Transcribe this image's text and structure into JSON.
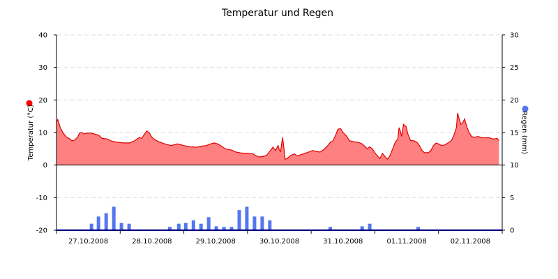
{
  "chart_data": {
    "type": "line",
    "title": "Temperatur und Regen",
    "grid": true,
    "colors": {
      "temperature_line": "#e00000",
      "temperature_fill": "#ff8080",
      "rain_bars": "#5577ee",
      "grid": "#dddddd",
      "axis": "#000080"
    },
    "ylabel_left": "Temperatur (°C)",
    "ylabel_right": "Regen (mm)",
    "legend_left_marker_color": "#ff0000",
    "legend_right_marker_color": "#5577ee",
    "ylim_left": [
      -20,
      40
    ],
    "yticks_left": [
      "40",
      "30",
      "20",
      "10",
      "0",
      "-10",
      "-20"
    ],
    "ylim_right": [
      0,
      30
    ],
    "yticks_right": [
      "30",
      "25",
      "20",
      "15",
      "10",
      "5",
      "0"
    ],
    "xlim_days": [
      0,
      7
    ],
    "xtick_labels": [
      "27.10.2008",
      "28.10.2008",
      "29.10.2008",
      "30.10.2008",
      "31.10.2008",
      "01.11.2008",
      "02.11.2008"
    ],
    "series": [
      {
        "name": "Temperatur",
        "type": "area",
        "axis": "left",
        "points": [
          [
            0.0,
            13.3
          ],
          [
            0.02,
            14.0
          ],
          [
            0.06,
            11.5
          ],
          [
            0.1,
            10.0
          ],
          [
            0.16,
            8.5
          ],
          [
            0.2,
            8.2
          ],
          [
            0.24,
            7.5
          ],
          [
            0.28,
            7.6
          ],
          [
            0.33,
            8.5
          ],
          [
            0.36,
            9.8
          ],
          [
            0.4,
            10.0
          ],
          [
            0.44,
            9.6
          ],
          [
            0.48,
            9.8
          ],
          [
            0.55,
            9.8
          ],
          [
            0.6,
            9.5
          ],
          [
            0.66,
            9.2
          ],
          [
            0.72,
            8.2
          ],
          [
            0.8,
            8.0
          ],
          [
            0.86,
            7.4
          ],
          [
            0.95,
            7.0
          ],
          [
            1.05,
            6.8
          ],
          [
            1.15,
            6.8
          ],
          [
            1.22,
            7.4
          ],
          [
            1.3,
            8.5
          ],
          [
            1.34,
            8.2
          ],
          [
            1.38,
            9.5
          ],
          [
            1.42,
            10.5
          ],
          [
            1.46,
            9.8
          ],
          [
            1.5,
            8.5
          ],
          [
            1.56,
            7.6
          ],
          [
            1.63,
            7.0
          ],
          [
            1.7,
            6.5
          ],
          [
            1.8,
            6.0
          ],
          [
            1.9,
            6.5
          ],
          [
            2.0,
            6.0
          ],
          [
            2.1,
            5.6
          ],
          [
            2.2,
            5.5
          ],
          [
            2.28,
            5.8
          ],
          [
            2.35,
            6.0
          ],
          [
            2.42,
            6.5
          ],
          [
            2.48,
            6.8
          ],
          [
            2.53,
            6.5
          ],
          [
            2.58,
            6.0
          ],
          [
            2.65,
            5.0
          ],
          [
            2.75,
            4.6
          ],
          [
            2.82,
            4.0
          ],
          [
            2.9,
            3.7
          ],
          [
            3.0,
            3.6
          ],
          [
            3.08,
            3.5
          ],
          [
            3.14,
            2.8
          ],
          [
            3.18,
            2.5
          ],
          [
            3.24,
            2.6
          ],
          [
            3.3,
            3.0
          ],
          [
            3.36,
            4.5
          ],
          [
            3.4,
            5.5
          ],
          [
            3.44,
            4.5
          ],
          [
            3.48,
            6.0
          ],
          [
            3.5,
            4.6
          ],
          [
            3.52,
            4.2
          ],
          [
            3.55,
            8.5
          ],
          [
            3.57,
            5.5
          ],
          [
            3.59,
            1.8
          ],
          [
            3.62,
            2.0
          ],
          [
            3.68,
            3.0
          ],
          [
            3.74,
            3.4
          ],
          [
            3.78,
            2.8
          ],
          [
            3.84,
            3.2
          ],
          [
            3.9,
            3.6
          ],
          [
            3.96,
            4.0
          ],
          [
            4.02,
            4.5
          ],
          [
            4.08,
            4.2
          ],
          [
            4.14,
            4.0
          ],
          [
            4.2,
            4.8
          ],
          [
            4.26,
            6.0
          ],
          [
            4.3,
            7.0
          ],
          [
            4.34,
            7.4
          ],
          [
            4.38,
            9.0
          ],
          [
            4.42,
            11.0
          ],
          [
            4.46,
            11.2
          ],
          [
            4.5,
            10.0
          ],
          [
            4.56,
            8.8
          ],
          [
            4.6,
            7.5
          ],
          [
            4.66,
            7.2
          ],
          [
            4.74,
            7.0
          ],
          [
            4.8,
            6.5
          ],
          [
            4.84,
            5.8
          ],
          [
            4.88,
            5.0
          ],
          [
            4.92,
            5.6
          ],
          [
            4.96,
            5.0
          ],
          [
            5.0,
            3.8
          ],
          [
            5.04,
            2.8
          ],
          [
            5.08,
            2.0
          ],
          [
            5.12,
            3.6
          ],
          [
            5.16,
            2.6
          ],
          [
            5.2,
            1.8
          ],
          [
            5.24,
            3.0
          ],
          [
            5.28,
            5.0
          ],
          [
            5.32,
            7.0
          ],
          [
            5.36,
            8.0
          ],
          [
            5.38,
            11.5
          ],
          [
            5.4,
            10.5
          ],
          [
            5.42,
            8.8
          ],
          [
            5.45,
            12.5
          ],
          [
            5.49,
            11.8
          ],
          [
            5.52,
            9.5
          ],
          [
            5.56,
            7.6
          ],
          [
            5.62,
            7.4
          ],
          [
            5.66,
            7.0
          ],
          [
            5.7,
            6.0
          ],
          [
            5.74,
            4.5
          ],
          [
            5.78,
            3.8
          ],
          [
            5.84,
            3.8
          ],
          [
            5.88,
            4.5
          ],
          [
            5.92,
            6.0
          ],
          [
            5.96,
            6.8
          ],
          [
            6.0,
            6.5
          ],
          [
            6.05,
            6.0
          ],
          [
            6.1,
            6.2
          ],
          [
            6.15,
            6.8
          ],
          [
            6.2,
            7.5
          ],
          [
            6.24,
            9.0
          ],
          [
            6.28,
            11.5
          ],
          [
            6.3,
            16.0
          ],
          [
            6.32,
            14.5
          ],
          [
            6.35,
            12.5
          ],
          [
            6.38,
            13.0
          ],
          [
            6.41,
            14.2
          ],
          [
            6.44,
            12.0
          ],
          [
            6.48,
            10.0
          ],
          [
            6.52,
            8.8
          ],
          [
            6.56,
            8.5
          ],
          [
            6.62,
            8.8
          ],
          [
            6.68,
            8.4
          ],
          [
            6.74,
            8.4
          ],
          [
            6.8,
            8.4
          ],
          [
            6.86,
            8.0
          ],
          [
            6.92,
            8.2
          ],
          [
            6.95,
            7.5
          ]
        ]
      },
      {
        "name": "Regen",
        "type": "bar",
        "axis": "right",
        "points": [
          [
            0.55,
            1.0
          ],
          [
            0.66,
            2.1
          ],
          [
            0.78,
            2.6
          ],
          [
            0.9,
            3.6
          ],
          [
            1.02,
            1.1
          ],
          [
            1.14,
            1.0
          ],
          [
            1.78,
            0.5
          ],
          [
            1.92,
            1.0
          ],
          [
            2.03,
            1.1
          ],
          [
            2.15,
            1.5
          ],
          [
            2.27,
            1.0
          ],
          [
            2.39,
            2.0
          ],
          [
            2.51,
            0.6
          ],
          [
            2.63,
            0.5
          ],
          [
            2.75,
            0.5
          ],
          [
            2.87,
            3.1
          ],
          [
            2.99,
            3.6
          ],
          [
            3.11,
            2.1
          ],
          [
            3.23,
            2.1
          ],
          [
            3.35,
            1.5
          ],
          [
            4.3,
            0.5
          ],
          [
            4.8,
            0.6
          ],
          [
            4.92,
            1.0
          ],
          [
            5.68,
            0.5
          ]
        ]
      }
    ]
  }
}
